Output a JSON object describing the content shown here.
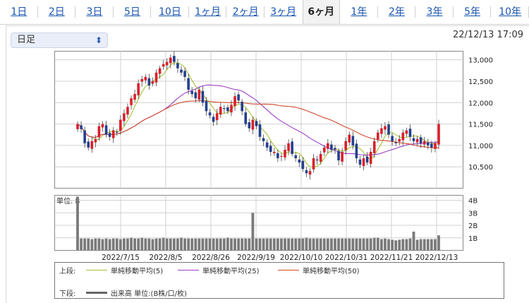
{
  "tabs": [
    {
      "label": "1日",
      "active": false
    },
    {
      "label": "2日",
      "active": false
    },
    {
      "label": "3日",
      "active": false
    },
    {
      "label": "5日",
      "active": false
    },
    {
      "label": "10日",
      "active": false
    },
    {
      "label": "1ヶ月",
      "active": false
    },
    {
      "label": "2ヶ月",
      "active": false
    },
    {
      "label": "3ヶ月",
      "active": false
    },
    {
      "label": "6ヶ月",
      "active": true
    },
    {
      "label": "1年",
      "active": false
    },
    {
      "label": "2年",
      "active": false
    },
    {
      "label": "3年",
      "active": false
    },
    {
      "label": "5年",
      "active": false
    },
    {
      "label": "10年",
      "active": false
    }
  ],
  "period_select": {
    "value": "日足"
  },
  "timestamp": "22/12/13 17:09",
  "chart_data": {
    "type": "candlestick",
    "price_axis": {
      "ticks": [
        "13,000",
        "12,500",
        "12,000",
        "11,500",
        "11,000",
        "10,500"
      ],
      "range": [
        10000,
        13200
      ]
    },
    "volume_axis": {
      "unit_label": "単位: B",
      "ticks": [
        "4B",
        "3B",
        "2B",
        "1B"
      ],
      "range": [
        0,
        4.4
      ]
    },
    "x_labels": [
      "2022/7/15",
      "2022/8/5",
      "2022/8/26",
      "2022/9/19",
      "2022/10/10",
      "2022/10/31",
      "2022/11/21",
      "2022/12/13"
    ],
    "colors": {
      "up": "#d9202a",
      "down": "#23408e",
      "sma5": "#a8c23a",
      "sma25": "#9b40c8",
      "sma50": "#cf4a2a",
      "volume": "#7a7a7a"
    },
    "close_series": [
      11500,
      11380,
      11050,
      10950,
      11100,
      11150,
      11450,
      11500,
      11250,
      11200,
      11350,
      11300,
      11600,
      11750,
      11900,
      12100,
      12200,
      12450,
      12550,
      12600,
      12400,
      12500,
      12700,
      12800,
      12900,
      12950,
      13050,
      12950,
      12800,
      12700,
      12600,
      12300,
      12200,
      12100,
      12300,
      12000,
      11800,
      11700,
      11550,
      11750,
      11900,
      11850,
      11800,
      11950,
      12150,
      12050,
      11800,
      11500,
      11400,
      11600,
      11450,
      11200,
      11100,
      10950,
      10850,
      10850,
      10700,
      10750,
      10900,
      11050,
      10800,
      10700,
      10600,
      10450,
      10350,
      10400,
      10700,
      10650,
      10800,
      10950,
      11050,
      10900,
      10900,
      10650,
      10850,
      11100,
      11250,
      11000,
      10700,
      10550,
      10700,
      10600,
      10850,
      11100,
      11300,
      11400,
      11450,
      11250,
      11100,
      11050,
      11150,
      11300,
      11350,
      11200,
      11100,
      11150,
      11050,
      11100,
      11000,
      10950,
      11050,
      11500
    ],
    "volume_series": [
      4.3,
      0.95,
      0.95,
      0.95,
      0.9,
      0.95,
      0.95,
      0.9,
      0.95,
      0.9,
      0.95,
      0.95,
      0.9,
      0.95,
      0.95,
      1.0,
      0.95,
      0.95,
      1.0,
      0.95,
      0.95,
      0.9,
      0.95,
      0.95,
      1.0,
      0.95,
      0.95,
      0.95,
      0.95,
      1.0,
      0.95,
      0.95,
      0.95,
      0.95,
      0.95,
      0.95,
      0.95,
      0.95,
      0.95,
      0.95,
      0.95,
      0.95,
      1.0,
      0.95,
      0.95,
      0.95,
      0.95,
      0.95,
      0.95,
      3.0,
      0.95,
      0.95,
      0.95,
      0.95,
      0.95,
      0.95,
      0.95,
      0.95,
      0.95,
      0.95,
      0.95,
      0.95,
      0.95,
      0.95,
      1.0,
      0.95,
      0.95,
      0.95,
      0.95,
      0.95,
      0.95,
      0.95,
      0.95,
      0.95,
      0.95,
      0.95,
      0.95,
      0.95,
      0.95,
      0.95,
      0.95,
      0.95,
      0.95,
      1.0,
      1.0,
      0.9,
      0.95,
      0.9,
      0.85,
      0.8,
      0.85,
      0.9,
      0.9,
      0.95,
      1.5,
      0.85,
      0.9,
      0.9,
      0.9,
      0.9,
      0.9,
      1.2
    ]
  },
  "legend": {
    "upper_label": "上段:",
    "lower_label": "下段:",
    "items": [
      {
        "label": "単純移動平均(5)",
        "color": "#a8c23a"
      },
      {
        "label": "単純移動平均(25)",
        "color": "#9b40c8"
      },
      {
        "label": "単純移動平均(50)",
        "color": "#cf4a2a"
      }
    ],
    "volume_label": "出来高 単位:(B株/口/枚)"
  }
}
